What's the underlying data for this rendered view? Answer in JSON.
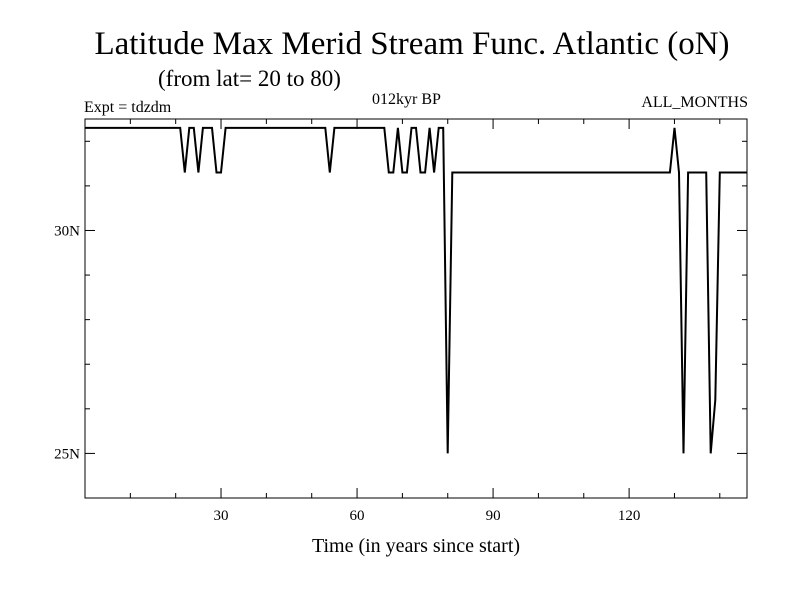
{
  "title": "Latitude Max Merid Stream Func. Atlantic (oN)",
  "subtitle": "(from lat= 20 to 80)",
  "expt": "Expt = tdzdm",
  "period": "012kyr BP",
  "months": "ALL_MONTHS",
  "chart_data": {
    "type": "line",
    "title": "Latitude Max Merid Stream Func. Atlantic (oN)",
    "xlabel": "Time (in years since start)",
    "ylabel": "",
    "xlim": [
      0,
      146
    ],
    "ylim": [
      24,
      32.5
    ],
    "xticks": [
      30,
      60,
      90,
      120
    ],
    "xtick_labels": [
      "30",
      "60",
      "90",
      "120"
    ],
    "xminor": [
      10,
      20,
      40,
      50,
      70,
      80,
      100,
      110,
      130,
      140
    ],
    "yticks": [
      25,
      30
    ],
    "ytick_labels": [
      "25N",
      "30N"
    ],
    "yminor": [
      26,
      27,
      28,
      29,
      31,
      32
    ],
    "grid": false,
    "series": [
      {
        "x": [
          0,
          21,
          22,
          23,
          24,
          25,
          26,
          27,
          28,
          29,
          30,
          31,
          32,
          53,
          54,
          55,
          65,
          66,
          67,
          68,
          69,
          70,
          71,
          72,
          73,
          74,
          75,
          76,
          77,
          78,
          79,
          80,
          81,
          82,
          83,
          98,
          99,
          129,
          130,
          131,
          132,
          133,
          134,
          137,
          138,
          139,
          140,
          141,
          142,
          146
        ],
        "y": [
          32.3,
          32.3,
          31.3,
          32.3,
          32.3,
          31.3,
          32.3,
          32.3,
          32.3,
          31.3,
          31.3,
          32.3,
          32.3,
          32.3,
          31.3,
          32.3,
          32.3,
          32.3,
          31.3,
          31.3,
          32.3,
          31.3,
          31.3,
          32.3,
          32.3,
          31.3,
          31.3,
          32.3,
          31.3,
          32.3,
          32.3,
          25.0,
          31.3,
          31.3,
          31.3,
          31.3,
          31.3,
          31.3,
          32.3,
          31.3,
          25.0,
          31.3,
          31.3,
          31.3,
          25.0,
          26.2,
          31.3,
          31.3,
          31.3,
          31.3
        ]
      }
    ]
  }
}
